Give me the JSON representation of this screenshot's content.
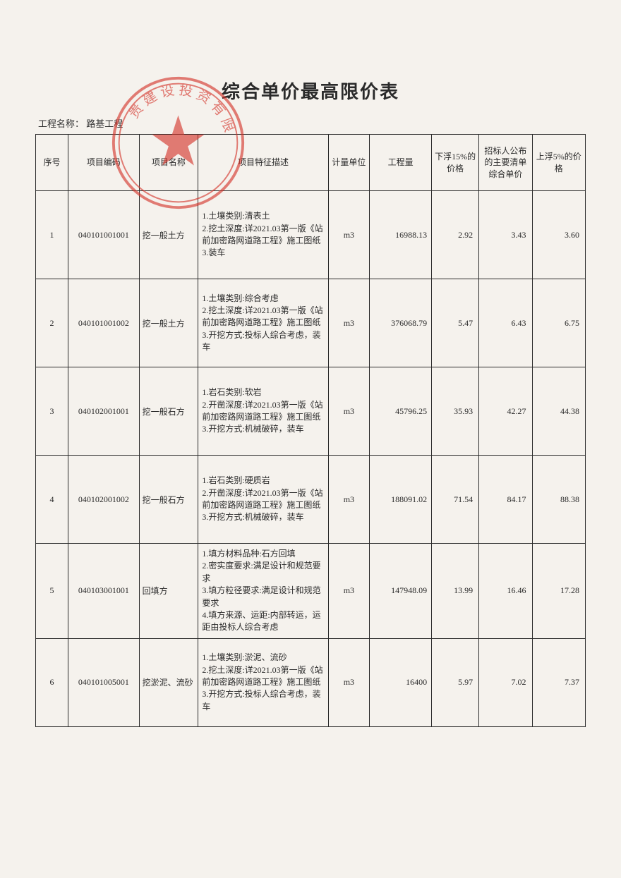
{
  "title": "综合单价最高限价表",
  "project_label": "工程名称：  路基工程",
  "stamp": {
    "outer_color": "#d43228",
    "text": "贵建设投资有限",
    "inner_color": "#d43228"
  },
  "table": {
    "headers": {
      "idx": "序号",
      "code": "项目编码",
      "name": "项目名称",
      "desc": "项目特征描述",
      "unit": "计量单位",
      "qty": "工程量",
      "p85": "下浮15%的价格",
      "pub": "招标人公布的主要清单综合单价",
      "p105": "上浮5%的价格"
    },
    "rows": [
      {
        "idx": "1",
        "code": "040101001001",
        "name": "挖一般土方",
        "desc": "1.土壤类别:清表土\n2.挖土深度:详2021.03第一版《站前加密路网道路工程》施工图纸\n3.装车",
        "unit": "m3",
        "qty": "16988.13",
        "p85": "2.92",
        "pub": "3.43",
        "p105": "3.60"
      },
      {
        "idx": "2",
        "code": "040101001002",
        "name": "挖一般土方",
        "desc": "1.土壤类别:综合考虑\n2.挖土深度:详2021.03第一版《站前加密路网道路工程》施工图纸\n3.开挖方式:投标人综合考虑，装车",
        "unit": "m3",
        "qty": "376068.79",
        "p85": "5.47",
        "pub": "6.43",
        "p105": "6.75"
      },
      {
        "idx": "3",
        "code": "040102001001",
        "name": "挖一般石方",
        "desc": "1.岩石类别:软岩\n2.开凿深度:详2021.03第一版《站前加密路网道路工程》施工图纸\n3.开挖方式:机械破碎，装车",
        "unit": "m3",
        "qty": "45796.25",
        "p85": "35.93",
        "pub": "42.27",
        "p105": "44.38"
      },
      {
        "idx": "4",
        "code": "040102001002",
        "name": "挖一般石方",
        "desc": "1.岩石类别:硬质岩\n2.开凿深度:详2021.03第一版《站前加密路网道路工程》施工图纸\n3.开挖方式:机械破碎，装车",
        "unit": "m3",
        "qty": "188091.02",
        "p85": "71.54",
        "pub": "84.17",
        "p105": "88.38"
      },
      {
        "idx": "5",
        "code": "040103001001",
        "name": "回填方",
        "desc": "1.填方材料品种:石方回填\n2.密实度要求:满足设计和规范要求\n3.填方粒径要求:满足设计和规范要求\n4.填方来源、运距:内部转运，运距由投标人综合考虑",
        "unit": "m3",
        "qty": "147948.09",
        "p85": "13.99",
        "pub": "16.46",
        "p105": "17.28"
      },
      {
        "idx": "6",
        "code": "040101005001",
        "name": "挖淤泥、流砂",
        "desc": "1.土壤类别:淤泥、流砂\n2.挖土深度:详2021.03第一版《站前加密路网道路工程》施工图纸\n3.开挖方式:投标人综合考虑，装车",
        "unit": "m3",
        "qty": "16400",
        "p85": "5.97",
        "pub": "7.02",
        "p105": "7.37"
      }
    ]
  }
}
